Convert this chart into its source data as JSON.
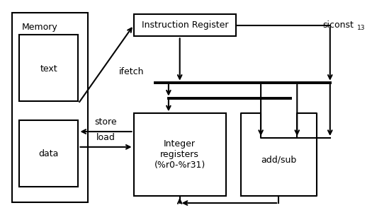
{
  "bg_color": "#ffffff",
  "lc": "#000000",
  "lw": 1.5,
  "lw_thick": 2.8,
  "memory_label": "Memory",
  "text_label": "text",
  "data_label": "data",
  "instr_label": "Instruction Register",
  "int_reg_label": "Integer\nregisters\n(%r0-%r31)",
  "addsub_label": "add/sub",
  "ifetch_label": "ifetch",
  "store_label": "store",
  "load_label": "load",
  "siconst_label": "siconst",
  "siconst_sub": "13"
}
